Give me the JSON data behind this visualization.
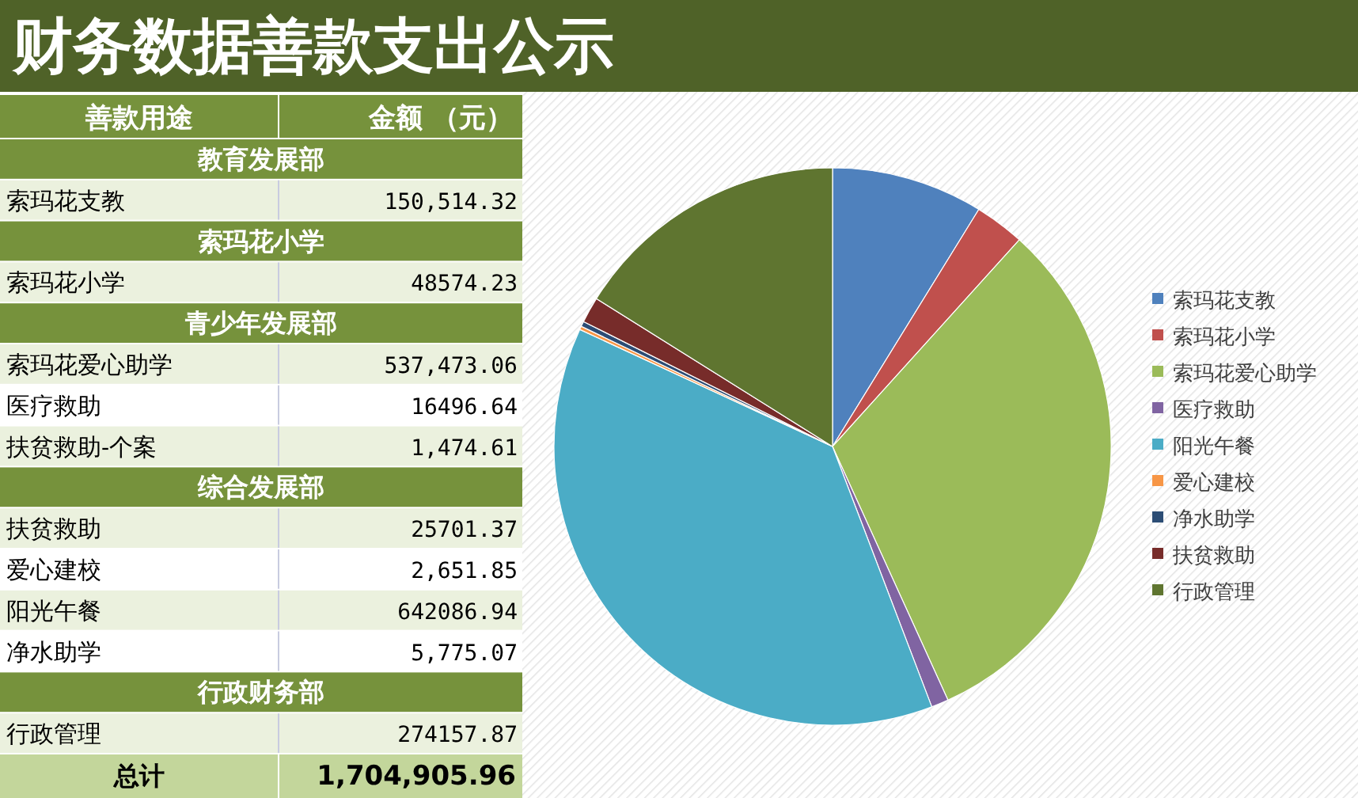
{
  "chart_data": [
    {
      "type": "other",
      "title": "财务数据善款支出公示",
      "xlabel": "善款用途",
      "ylabel": "金额 （元）",
      "categories": [
        "教育发展部",
        "索玛花支教",
        "索玛花小学",
        "索玛花小学",
        "青少年发展部",
        "索玛花爱心助学",
        "医疗救助",
        "扶贫救助-个案",
        "综合发展部",
        "扶贫救助",
        "爱心建校",
        "阳光午餐",
        "净水助学",
        "行政财务部",
        "行政管理",
        "总计"
      ],
      "values": [
        null,
        150514.32,
        null,
        48574.23,
        null,
        537473.06,
        16496.64,
        1474.61,
        null,
        25701.37,
        2651.85,
        642086.94,
        5775.07,
        null,
        274157.87,
        1704905.96
      ],
      "value_labels": [
        null,
        "150,514.32",
        null,
        "48574.23",
        null,
        "537,473.06",
        "16496.64",
        "1,474.61",
        null,
        "25701.37",
        "2,651.85",
        "642086.94",
        "5,775.07",
        null,
        "274157.87",
        "1,704,905.96"
      ]
    },
    {
      "type": "pie",
      "categories": [
        "索玛花支教",
        "索玛花小学",
        "索玛花爱心助学",
        "医疗救助",
        "阳光午餐",
        "爱心建校",
        "净水助学",
        "扶贫救助",
        "行政管理"
      ],
      "values": [
        8.8,
        2.9,
        31.5,
        1.0,
        37.7,
        0.2,
        0.3,
        1.5,
        16.1
      ],
      "colors": [
        "#4f81bd",
        "#c0504d",
        "#9bbb59",
        "#8064a2",
        "#4bacc6",
        "#f79646",
        "#2c4d75",
        "#772c2a",
        "#5f7530"
      ],
      "legend": "right"
    }
  ]
}
